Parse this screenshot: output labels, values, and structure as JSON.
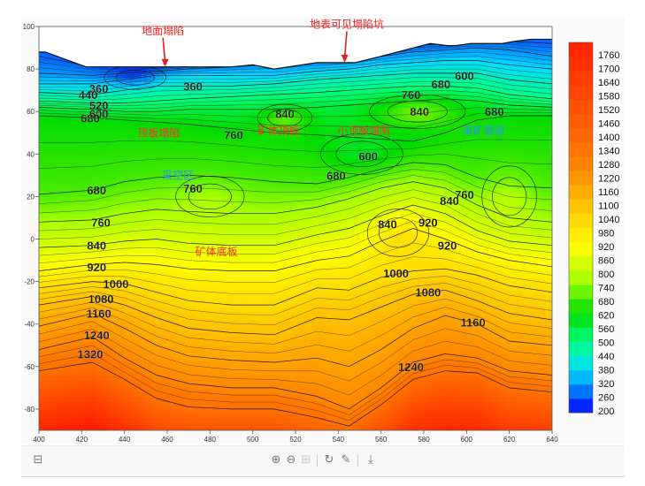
{
  "chart_data": {
    "type": "heatmap",
    "subtype": "filled contour map with labeled isolines",
    "title": "",
    "xlabel": "",
    "ylabel": "",
    "xlim": [
      400,
      640
    ],
    "ylim": [
      -90,
      100
    ],
    "x_ticks": [
      400,
      420,
      440,
      460,
      480,
      500,
      520,
      540,
      560,
      580,
      600,
      620,
      640
    ],
    "y_ticks": [
      100,
      80,
      60,
      40,
      20,
      0,
      -20,
      -40,
      -60,
      -80
    ],
    "surface_profile": {
      "x": [
        400,
        403,
        422,
        432,
        470,
        490,
        500,
        510,
        530,
        548,
        560,
        583,
        591,
        595,
        602,
        612,
        617,
        622,
        630,
        640
      ],
      "y": [
        88,
        88,
        81,
        81,
        81,
        81,
        82,
        80,
        83,
        83,
        86,
        92,
        91,
        91,
        92,
        92,
        92,
        93,
        94,
        94
      ]
    },
    "colorbar": {
      "min": 200,
      "max": 1760,
      "step": 60,
      "tick_labels": [
        "1760",
        "1700",
        "1640",
        "1580",
        "1520",
        "1460",
        "1400",
        "1340",
        "1280",
        "1220",
        "1160",
        "1100",
        "1040",
        "980",
        "920",
        "860",
        "800",
        "740",
        "680",
        "620",
        "560",
        "500",
        "440",
        "380",
        "320",
        "260",
        "200"
      ],
      "colors": [
        "#0000ff",
        "#0080ff",
        "#00dcff",
        "#00ff80",
        "#00dc00",
        "#a8ff00",
        "#ffff00",
        "#ffc000",
        "#ff7800",
        "#ff2000"
      ],
      "color_stops": [
        200,
        300,
        380,
        500,
        620,
        760,
        900,
        1080,
        1280,
        1760
      ]
    },
    "contour_labels": [
      {
        "text": "360",
        "x": 428,
        "y": 71
      },
      {
        "text": "360",
        "x": 472,
        "y": 72
      },
      {
        "text": "440",
        "x": 423,
        "y": 68
      },
      {
        "text": "520",
        "x": 428,
        "y": 63
      },
      {
        "text": "600",
        "x": 428,
        "y": 59
      },
      {
        "text": "680",
        "x": 424,
        "y": 57
      },
      {
        "text": "840",
        "x": 515,
        "y": 59
      },
      {
        "text": "760",
        "x": 491,
        "y": 49
      },
      {
        "text": "760",
        "x": 574,
        "y": 68
      },
      {
        "text": "680",
        "x": 588,
        "y": 73
      },
      {
        "text": "600",
        "x": 599,
        "y": 77
      },
      {
        "text": "840",
        "x": 578,
        "y": 60
      },
      {
        "text": "680",
        "x": 613,
        "y": 60
      },
      {
        "text": "600",
        "x": 554,
        "y": 39
      },
      {
        "text": "680",
        "x": 539,
        "y": 30
      },
      {
        "text": "680",
        "x": 427,
        "y": 23
      },
      {
        "text": "760",
        "x": 472,
        "y": 24
      },
      {
        "text": "760",
        "x": 429,
        "y": 8
      },
      {
        "text": "840",
        "x": 427,
        "y": -3
      },
      {
        "text": "840",
        "x": 563,
        "y": 7
      },
      {
        "text": "920",
        "x": 582,
        "y": 8
      },
      {
        "text": "920",
        "x": 591,
        "y": -3
      },
      {
        "text": "760",
        "x": 599,
        "y": 21
      },
      {
        "text": "840",
        "x": 592,
        "y": 18
      },
      {
        "text": "920",
        "x": 427,
        "y": -13
      },
      {
        "text": "1000",
        "x": 436,
        "y": -21
      },
      {
        "text": "1000",
        "x": 567,
        "y": -16
      },
      {
        "text": "1080",
        "x": 429,
        "y": -28
      },
      {
        "text": "1080",
        "x": 582,
        "y": -25
      },
      {
        "text": "1160",
        "x": 428,
        "y": -35
      },
      {
        "text": "1160",
        "x": 603,
        "y": -39
      },
      {
        "text": "1240",
        "x": 427,
        "y": -45
      },
      {
        "text": "1240",
        "x": 574,
        "y": -60
      },
      {
        "text": "1320",
        "x": 424,
        "y": -54
      }
    ],
    "annotations": [
      {
        "text": "地面塌陷",
        "x": 458,
        "y": 98,
        "color": "#ff2020",
        "arrow_to": [
          459,
          81
        ]
      },
      {
        "text": "地表可见塌陷坑",
        "x": 544,
        "y": 101,
        "color": "#ff2020",
        "arrow_to": [
          543,
          83
        ]
      },
      {
        "text": "顶板塌陷",
        "x": 456,
        "y": 50,
        "color": "#ff3030"
      },
      {
        "text": "矿体顶板",
        "x": 512,
        "y": 51,
        "color": "#ff3030"
      },
      {
        "text": "小顶板塌陷",
        "x": 552,
        "y": 51,
        "color": "#ff3030"
      },
      {
        "text": "采矿巷道",
        "x": 608,
        "y": 51,
        "color": "#2f8fff"
      },
      {
        "text": "采空区",
        "x": 465,
        "y": 30,
        "color": "#2f8fff"
      },
      {
        "text": "矿体底板",
        "x": 483,
        "y": -6,
        "color": "#ff3030"
      }
    ]
  },
  "toolbar": {
    "restore_icon": "⊟",
    "zoom_in_icon": "⊕",
    "zoom_out_icon": "⊖",
    "data_view_icon": "⊞",
    "refresh_icon": "↻",
    "edit_icon": "✎",
    "download_icon": "⤓"
  }
}
